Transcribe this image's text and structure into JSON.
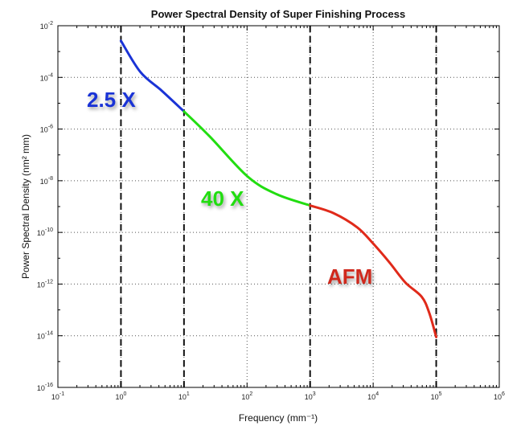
{
  "chart_data": {
    "type": "line",
    "title": "Power Spectral Density of Super Finishing Process",
    "xlabel": "Frequency (mm⁻¹)",
    "ylabel": "Power Spectral Density (nm² mm)",
    "xscale": "log",
    "yscale": "log",
    "xlim": [
      0.1,
      1000000
    ],
    "ylim": [
      1e-16,
      0.01
    ],
    "x_tick_exponents": [
      -1,
      0,
      1,
      2,
      3,
      4,
      5,
      6
    ],
    "y_tick_exponents": [
      -16,
      -14,
      -12,
      -10,
      -8,
      -6,
      -4,
      -2
    ],
    "grid": "dotted",
    "vertical_dashed_lines": [
      1,
      10,
      1000,
      100000
    ],
    "series": [
      {
        "name": "2.5 X",
        "color": "#1a33d6",
        "x": [
          1,
          2.04,
          4.47,
          10
        ],
        "y": [
          0.0026,
          0.00016,
          3e-05,
          4.8e-06
        ]
      },
      {
        "name": "40 X",
        "color": "#22dd11",
        "x": [
          10,
          25.7,
          102,
          295,
          1000
        ],
        "y": [
          4.8e-06,
          5.1e-07,
          1.45e-08,
          3e-09,
          1.1e-09
        ]
      },
      {
        "name": "AFM",
        "color": "#e02a1a",
        "x": [
          1000,
          2340,
          5620,
          10000,
          18200,
          32400,
          58900,
          77600,
          100000
        ],
        "y": [
          1.1e-09,
          5.6e-10,
          1.55e-10,
          3.7e-11,
          6.8e-12,
          1.15e-12,
          3.2e-13,
          7.6e-14,
          8.9e-15
        ]
      }
    ],
    "annotations": [
      {
        "text": "2.5 X",
        "color": "#1a33d6"
      },
      {
        "text": "40 X",
        "color": "#22dd11"
      },
      {
        "text": "AFM",
        "color": "#d0281c"
      }
    ]
  }
}
